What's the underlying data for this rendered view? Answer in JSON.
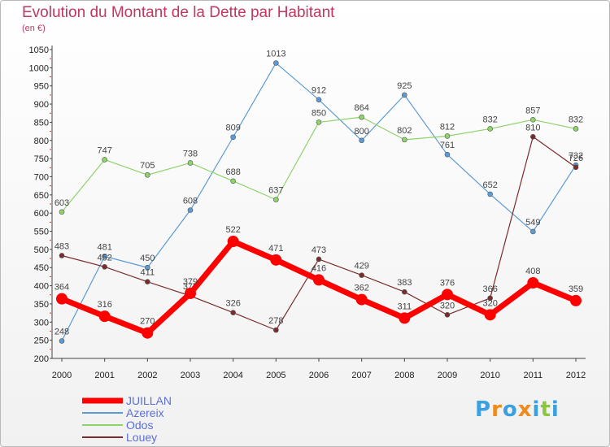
{
  "title": "Evolution du Montant de la Dette par Habitant",
  "subtitle": "(en €)",
  "chart_data": {
    "type": "line",
    "title": "Evolution du Montant de la Dette par Habitant",
    "ylabel": "(en €)",
    "xlabel": "",
    "x": [
      "2000",
      "2001",
      "2002",
      "2003",
      "2004",
      "2005",
      "2006",
      "2007",
      "2008",
      "2009",
      "2010",
      "2011",
      "2012"
    ],
    "ylim": [
      200,
      1050
    ],
    "yticks": [
      200,
      250,
      300,
      350,
      400,
      450,
      500,
      550,
      600,
      650,
      700,
      750,
      800,
      850,
      900,
      950,
      1000,
      1050
    ],
    "grid": false,
    "legend_position": "bottom-left",
    "series": [
      {
        "name": "JUILLAN",
        "color": "#ff0000",
        "values": [
          364,
          316,
          270,
          379,
          522,
          471,
          416,
          362,
          311,
          376,
          320,
          408,
          359
        ]
      },
      {
        "name": "Azereix",
        "color": "#5b9bd5",
        "values": [
          248,
          481,
          450,
          608,
          809,
          1013,
          912,
          800,
          925,
          761,
          652,
          549,
          732
        ]
      },
      {
        "name": "Odos",
        "color": "#8fd36b",
        "values": [
          603,
          747,
          705,
          738,
          688,
          637,
          850,
          864,
          802,
          812,
          832,
          857,
          832
        ]
      },
      {
        "name": "Louey",
        "color": "#7b2c2c",
        "values": [
          483,
          452,
          411,
          372,
          326,
          278,
          473,
          429,
          383,
          320,
          366,
          810,
          726
        ]
      }
    ]
  },
  "logo": {
    "parts": [
      "P",
      "r",
      "o",
      "x",
      "i",
      "t",
      "i"
    ],
    "colors": [
      "#3aa0e0",
      "#f08a1c",
      "#3aa0e0",
      "#f08a1c",
      "#3aa0e0",
      "#8cc63f",
      "#3aa0e0"
    ]
  }
}
